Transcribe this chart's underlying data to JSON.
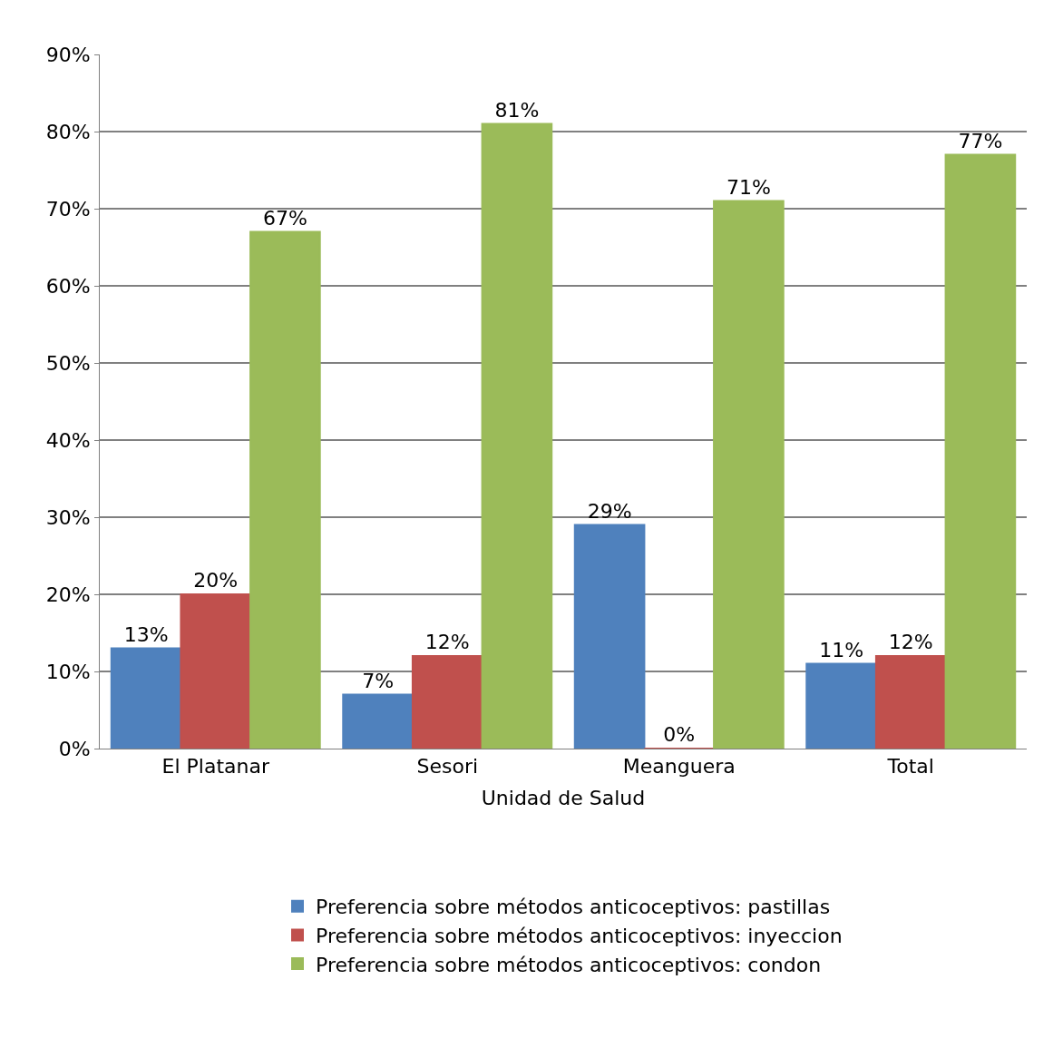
{
  "chart_data": {
    "type": "bar",
    "categories": [
      "El Platanar",
      "Sesori",
      "Meanguera",
      "Total"
    ],
    "xlabel": "Unidad de Salud",
    "series": [
      {
        "name": "Preferencia sobre métodos anticoceptivos: pastillas",
        "color": "#4f81bd",
        "values": [
          13,
          7,
          29,
          11
        ],
        "value_labels": [
          "13%",
          "7%",
          "29%",
          "11%"
        ]
      },
      {
        "name": "Preferencia sobre métodos anticoceptivos: inyeccion",
        "color": "#c0504d",
        "values": [
          20,
          12,
          0,
          12
        ],
        "value_labels": [
          "20%",
          "12%",
          "0%",
          "12%"
        ]
      },
      {
        "name": "Preferencia sobre métodos anticoceptivos: condon",
        "color": "#9bbb59",
        "values": [
          67,
          81,
          71,
          77
        ],
        "value_labels": [
          "67%",
          "81%",
          "71%",
          "77%"
        ]
      }
    ],
    "ylim": [
      0,
      90
    ],
    "yticks": [
      {
        "value": 0,
        "label": "0%"
      },
      {
        "value": 10,
        "label": "10%"
      },
      {
        "value": 20,
        "label": "20%"
      },
      {
        "value": 30,
        "label": "30%"
      },
      {
        "value": 40,
        "label": "40%"
      },
      {
        "value": 50,
        "label": "50%"
      },
      {
        "value": 60,
        "label": "60%"
      },
      {
        "value": 70,
        "label": "70%"
      },
      {
        "value": 80,
        "label": "80%"
      },
      {
        "value": 90,
        "label": "90%"
      }
    ],
    "grid": "y",
    "legend": "bottom"
  }
}
